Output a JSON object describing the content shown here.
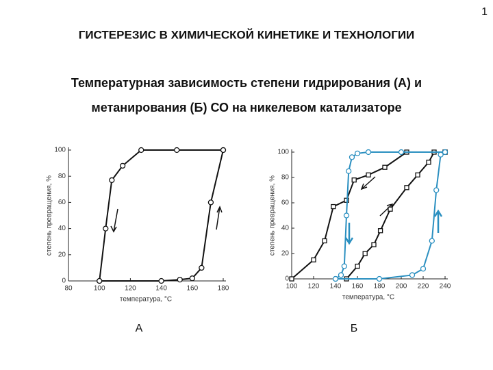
{
  "page_number": "1",
  "heading": "ГИСТЕРЕЗИС В ХИМИЧЕСКОЙ КИНЕТИКЕ И ТЕХНОЛОГИИ",
  "subtitle": [
    "Температурная зависимость степени гидрирования (А) и",
    "метанирования (Б) СО на никелевом катализаторе"
  ],
  "chart_data": [
    {
      "type": "line",
      "caption": "А",
      "xlabel": "температура, °C",
      "ylabel": "степень превращения, %",
      "xlim": [
        80,
        180
      ],
      "xticks": [
        80,
        100,
        120,
        140,
        160,
        180
      ],
      "ylim": [
        0,
        100
      ],
      "yticks": [
        0,
        20,
        40,
        60,
        80,
        100
      ],
      "series": [
        {
          "color": "#111111",
          "marker": "circle",
          "x": [
            180,
            150,
            127,
            115,
            108,
            104,
            100
          ],
          "values": [
            100,
            100,
            100,
            88,
            77,
            40,
            0
          ]
        },
        {
          "color": "#111111",
          "marker": "circle",
          "x": [
            100,
            140,
            152,
            160,
            166,
            172,
            180
          ],
          "values": [
            0,
            0,
            1,
            2,
            10,
            60,
            100
          ]
        }
      ]
    },
    {
      "type": "line",
      "caption": "Б",
      "xlabel": "температура, °C",
      "ylabel": "степень превращения, %",
      "xlim": [
        100,
        240
      ],
      "xticks": [
        100,
        120,
        140,
        160,
        180,
        200,
        220,
        240
      ],
      "ylim": [
        0,
        100
      ],
      "yticks": [
        0,
        20,
        40,
        60,
        80,
        100
      ],
      "series": [
        {
          "color": "#111111",
          "marker": "square",
          "x": [
            100,
            120,
            130,
            138,
            150,
            157,
            170,
            185,
            205,
            240
          ],
          "values": [
            0,
            15,
            30,
            57,
            62,
            78,
            82,
            88,
            100,
            100
          ]
        },
        {
          "color": "#111111",
          "marker": "square",
          "x": [
            150,
            160,
            167,
            175,
            181,
            190,
            205,
            215,
            225,
            230,
            240
          ],
          "values": [
            0,
            10,
            20,
            27,
            38,
            55,
            72,
            82,
            92,
            100,
            100
          ]
        },
        {
          "color": "#2a8fc0",
          "marker": "circle",
          "x": [
            240,
            200,
            170,
            160,
            155,
            152,
            150,
            148,
            145,
            140
          ],
          "values": [
            100,
            100,
            100,
            99,
            96,
            85,
            50,
            10,
            3,
            0
          ]
        },
        {
          "color": "#2a8fc0",
          "marker": "circle",
          "x": [
            140,
            180,
            210,
            220,
            228,
            232,
            236,
            240
          ],
          "values": [
            0,
            0,
            3,
            8,
            30,
            70,
            98,
            100
          ]
        }
      ]
    }
  ]
}
